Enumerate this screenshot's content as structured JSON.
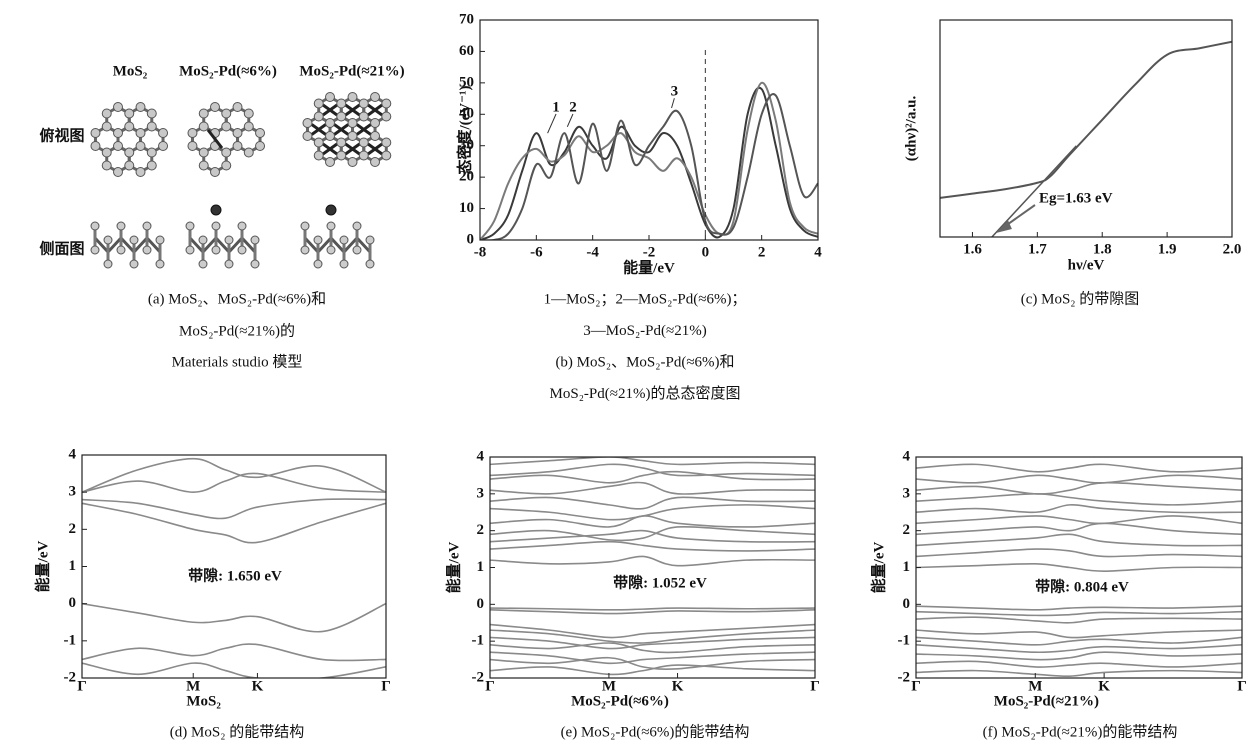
{
  "model_panel": {
    "labels": [
      "MoS₂",
      "MoS₂-Pd(≈6%)",
      "MoS₂-Pd(≈21%)"
    ],
    "views": [
      "俯视图",
      "侧面图"
    ],
    "captions": [
      "(a) MoS₂、MoS₂-Pd(≈6%)和",
      "MoS₂-Pd(≈21%)的",
      "Materials studio 模型"
    ]
  },
  "chart_data": [
    {
      "type": "line",
      "xlabel": "能量/eV",
      "ylabel": "态密度/(eV⁻¹)",
      "x": [
        -8,
        -7.5,
        -7,
        -6.5,
        -6,
        -5.5,
        -5,
        -4.5,
        -4,
        -3.5,
        -3,
        -2.5,
        -2,
        -1.5,
        -1,
        -0.5,
        0,
        0.5,
        1,
        1.5,
        2,
        2.5,
        3,
        3.5,
        4
      ],
      "series": [
        {
          "name": "1",
          "color": "#3a3a3a",
          "values": [
            0,
            2,
            8,
            22,
            34,
            24,
            28,
            36,
            30,
            26,
            36,
            30,
            28,
            34,
            30,
            18,
            5,
            1,
            10,
            40,
            48,
            30,
            10,
            3,
            1
          ]
        },
        {
          "name": "2",
          "color": "#7a7a7a",
          "values": [
            0,
            6,
            18,
            26,
            29,
            25,
            27,
            33,
            28,
            30,
            34,
            28,
            26,
            22,
            26,
            20,
            8,
            2,
            6,
            35,
            50,
            38,
            12,
            4,
            2
          ]
        },
        {
          "name": "3",
          "color": "#555555",
          "values": [
            0,
            0,
            2,
            10,
            24,
            20,
            34,
            18,
            37,
            22,
            38,
            24,
            30,
            36,
            41,
            30,
            6,
            2,
            4,
            20,
            40,
            46,
            30,
            14,
            18
          ]
        }
      ],
      "vline": 0,
      "xlim": [
        -8,
        4
      ],
      "xticks": [
        -8,
        -6,
        -4,
        -2,
        0,
        2,
        4
      ],
      "ylim": [
        0,
        70
      ],
      "yticks": [
        0,
        10,
        20,
        30,
        40,
        50,
        60,
        70
      ],
      "captions": [
        "1—MoS₂；2—MoS₂-Pd(≈6%)；",
        "3—MoS₂-Pd(≈21%)",
        "(b) MoS₂、MoS₂-Pd(≈6%)和",
        "MoS₂-Pd(≈21%)的总态密度图"
      ]
    },
    {
      "type": "tauc",
      "xlabel": "hν/eV",
      "ylabel": "(αhν)²/a.u.",
      "x": [
        1.55,
        1.6,
        1.65,
        1.7,
        1.72,
        1.75,
        1.8,
        1.85,
        1.9,
        1.95,
        2.0
      ],
      "values": [
        0.18,
        0.2,
        0.22,
        0.25,
        0.28,
        0.38,
        0.54,
        0.7,
        0.84,
        0.87,
        0.9
      ],
      "color": "#555555",
      "fit": {
        "x": [
          1.63,
          1.76
        ],
        "values": [
          0,
          0.42
        ]
      },
      "annotation": "Eg=1.63 eV",
      "xlim": [
        1.55,
        2.0
      ],
      "xticks": [
        1.6,
        1.7,
        1.8,
        1.9,
        {
          "value": 2,
          "label": "2.0"
        }
      ],
      "ylim": [
        0,
        1
      ],
      "captions": [
        "(c) MoS₂ 的带隙图"
      ]
    },
    {
      "type": "band",
      "xlabel": "MoS₂",
      "ylabel": "能量/eV",
      "annotation": "带隙: 1.650 eV",
      "color": "#8a8a8a",
      "x": [
        0,
        0.289,
        0.577,
        0.744,
        0.91,
        1.244,
        1.577
      ],
      "bands": [
        [
          0,
          -0.25,
          -0.5,
          -0.45,
          -0.35,
          -0.75,
          0
        ],
        [
          -1.5,
          -1.2,
          -1.4,
          -1.2,
          -1.1,
          -1.5,
          -1.5
        ],
        [
          -1.6,
          -1.9,
          -1.6,
          -1.8,
          -2,
          -2,
          -1.7
        ],
        [
          2.7,
          2.4,
          2.0,
          1.85,
          1.65,
          2.2,
          2.7
        ],
        [
          2.8,
          2.7,
          2.4,
          2.3,
          2.6,
          2.8,
          2.8
        ],
        [
          3.0,
          3.3,
          3.0,
          3.3,
          3.5,
          3.1,
          3.0
        ],
        [
          3.0,
          3.6,
          3.9,
          3.6,
          3.4,
          3.7,
          3.0
        ]
      ],
      "xlim": [
        0,
        1.577
      ],
      "xticks": [
        {
          "value": 0,
          "label": "Γ"
        },
        {
          "value": 0.577,
          "label": "M"
        },
        {
          "value": 0.91,
          "label": "K"
        },
        {
          "value": 1.577,
          "label": "Γ"
        }
      ],
      "ylim": [
        -2,
        4
      ],
      "yticks": [
        -2,
        -1,
        0,
        1,
        2,
        3,
        4
      ],
      "captions": [
        "(d) MoS₂ 的能带结构"
      ]
    },
    {
      "type": "band",
      "xlabel": "MoS₂-Pd(≈6%)",
      "ylabel": "能量/eV",
      "annotation": "带隙: 1.052 eV",
      "color": "#8a8a8a",
      "x": [
        0,
        0.289,
        0.577,
        0.744,
        0.91,
        1.244,
        1.577
      ],
      "bands": [
        [
          -0.1,
          -0.12,
          -0.15,
          -0.13,
          -0.1,
          -0.12,
          -0.1
        ],
        [
          -0.15,
          -0.2,
          -0.25,
          -0.22,
          -0.18,
          -0.2,
          -0.15
        ],
        [
          -0.55,
          -0.7,
          -0.9,
          -0.8,
          -0.75,
          -0.65,
          -0.55
        ],
        [
          -0.7,
          -0.8,
          -1.0,
          -1.05,
          -0.95,
          -0.8,
          -0.7
        ],
        [
          -0.9,
          -1.0,
          -1.2,
          -1.1,
          -1.05,
          -0.95,
          -0.9
        ],
        [
          -1.1,
          -1.2,
          -1.05,
          -1.25,
          -1.3,
          -1.15,
          -1.1
        ],
        [
          -1.3,
          -1.4,
          -1.6,
          -1.5,
          -1.45,
          -1.35,
          -1.3
        ],
        [
          -1.5,
          -1.6,
          -1.45,
          -1.7,
          -1.75,
          -1.55,
          -1.5
        ],
        [
          -1.8,
          -1.7,
          -1.9,
          -1.8,
          -1.65,
          -1.75,
          -1.8
        ],
        [
          1.2,
          1.1,
          1.15,
          1.3,
          1.05,
          1.2,
          1.2
        ],
        [
          1.5,
          1.6,
          1.7,
          1.6,
          1.5,
          1.45,
          1.5
        ],
        [
          1.7,
          1.8,
          1.9,
          2.0,
          1.8,
          1.7,
          1.7
        ],
        [
          1.9,
          2.0,
          1.75,
          1.8,
          2.1,
          2.0,
          1.9
        ],
        [
          2.2,
          2.3,
          2.1,
          2.4,
          2.2,
          2.1,
          2.2
        ],
        [
          2.6,
          2.5,
          2.3,
          2.4,
          2.6,
          2.7,
          2.6
        ],
        [
          2.8,
          2.9,
          2.7,
          2.6,
          2.9,
          2.8,
          2.8
        ],
        [
          3.1,
          3.0,
          3.2,
          3.3,
          3.0,
          3.1,
          3.1
        ],
        [
          3.4,
          3.5,
          3.3,
          3.5,
          3.6,
          3.4,
          3.4
        ],
        [
          3.5,
          3.6,
          3.8,
          3.7,
          3.5,
          3.55,
          3.5
        ],
        [
          3.8,
          3.9,
          4.0,
          3.9,
          3.8,
          3.85,
          3.8
        ]
      ],
      "xlim": [
        0,
        1.577
      ],
      "xticks": [
        {
          "value": 0,
          "label": "Γ"
        },
        {
          "value": 0.577,
          "label": "M"
        },
        {
          "value": 0.91,
          "label": "K"
        },
        {
          "value": 1.577,
          "label": "Γ"
        }
      ],
      "ylim": [
        -2,
        4
      ],
      "yticks": [
        -2,
        -1,
        0,
        1,
        2,
        3,
        4
      ],
      "captions": [
        "(e) MoS₂-Pd(≈6%)的能带结构"
      ]
    },
    {
      "type": "band",
      "xlabel": "MoS₂-Pd(≈21%)",
      "ylabel": "能量/eV",
      "annotation": "带隙: 0.804 eV",
      "color": "#8a8a8a",
      "x": [
        0,
        0.289,
        0.577,
        0.744,
        0.91,
        1.244,
        1.577
      ],
      "bands": [
        [
          -0.05,
          -0.1,
          -0.15,
          -0.1,
          -0.08,
          -0.1,
          -0.05
        ],
        [
          -0.2,
          -0.25,
          -0.3,
          -0.28,
          -0.22,
          -0.25,
          -0.2
        ],
        [
          -0.4,
          -0.35,
          -0.45,
          -0.5,
          -0.4,
          -0.38,
          -0.4
        ],
        [
          -0.7,
          -0.8,
          -0.75,
          -0.9,
          -0.85,
          -0.75,
          -0.7
        ],
        [
          -0.9,
          -1.0,
          -1.1,
          -1.0,
          -0.95,
          -1.05,
          -0.9
        ],
        [
          -1.1,
          -1.2,
          -1.3,
          -1.25,
          -1.15,
          -1.2,
          -1.1
        ],
        [
          -1.35,
          -1.4,
          -1.5,
          -1.45,
          -1.3,
          -1.4,
          -1.35
        ],
        [
          -1.6,
          -1.55,
          -1.7,
          -1.65,
          -1.6,
          -1.7,
          -1.6
        ],
        [
          -1.85,
          -1.8,
          -1.9,
          -1.95,
          -1.85,
          -1.8,
          -1.85
        ],
        [
          1.0,
          1.05,
          1.1,
          1.0,
          0.9,
          1.0,
          1.0
        ],
        [
          1.3,
          1.4,
          1.5,
          1.45,
          1.3,
          1.35,
          1.3
        ],
        [
          1.6,
          1.7,
          1.8,
          1.9,
          1.7,
          1.6,
          1.6
        ],
        [
          1.9,
          2.0,
          2.1,
          2.0,
          2.2,
          2.0,
          1.9
        ],
        [
          2.2,
          2.3,
          2.4,
          2.3,
          2.2,
          2.4,
          2.2
        ],
        [
          2.5,
          2.6,
          2.5,
          2.7,
          2.6,
          2.5,
          2.5
        ],
        [
          2.8,
          2.9,
          3.0,
          2.9,
          2.8,
          2.7,
          2.8
        ],
        [
          3.1,
          3.2,
          3.0,
          3.1,
          3.3,
          3.2,
          3.1
        ],
        [
          3.4,
          3.3,
          3.5,
          3.4,
          3.3,
          3.5,
          3.4
        ],
        [
          3.7,
          3.8,
          3.6,
          3.7,
          3.8,
          3.6,
          3.7
        ]
      ],
      "xlim": [
        0,
        1.577
      ],
      "xticks": [
        {
          "value": 0,
          "label": "Γ"
        },
        {
          "value": 0.577,
          "label": "M"
        },
        {
          "value": 0.91,
          "label": "K"
        },
        {
          "value": 1.577,
          "label": "Γ"
        }
      ],
      "ylim": [
        -2,
        4
      ],
      "yticks": [
        -2,
        -1,
        0,
        1,
        2,
        3,
        4
      ],
      "captions": [
        "(f) MoS₂-Pd(≈21%)的能带结构"
      ]
    }
  ]
}
